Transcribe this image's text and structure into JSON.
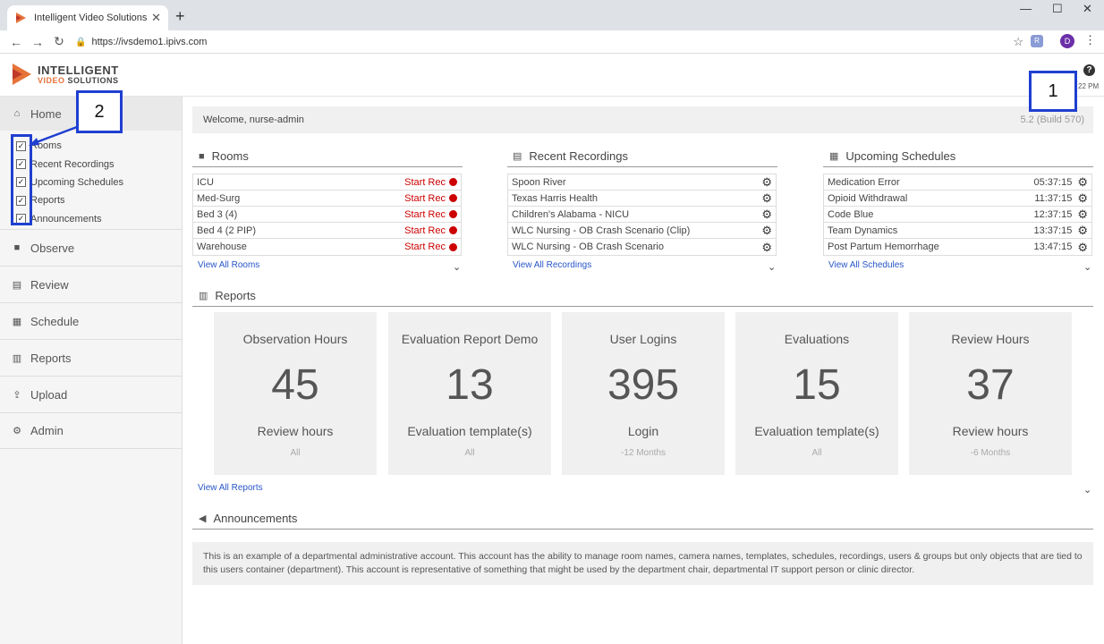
{
  "browser": {
    "tab_title": "Intelligent Video Solutions",
    "url": "https://ivsdemo1.ipivs.com",
    "profile_initial": "D"
  },
  "header": {
    "logo_line1": "INTELLIGENT",
    "logo_video": "VIDEO",
    "logo_solutions": "SOLUTIONS",
    "time": "22 PM"
  },
  "sidebar": {
    "home_label": "Home",
    "checklist": [
      "Rooms",
      "Recent Recordings",
      "Upcoming Schedules",
      "Reports",
      "Announcements"
    ],
    "items": [
      {
        "label": "Observe",
        "icon": "video-camera-icon"
      },
      {
        "label": "Review",
        "icon": "film-icon"
      },
      {
        "label": "Schedule",
        "icon": "calendar-icon"
      },
      {
        "label": "Reports",
        "icon": "bar-chart-icon"
      },
      {
        "label": "Upload",
        "icon": "upload-icon"
      },
      {
        "label": "Admin",
        "icon": "gear-icon"
      }
    ]
  },
  "callouts": {
    "one": "1",
    "two": "2"
  },
  "welcome": {
    "text": "Welcome, nurse-admin",
    "version": "5.2 (Build 570)"
  },
  "rooms": {
    "title": "Rooms",
    "start_label": "Start Rec",
    "items": [
      "ICU",
      "Med-Surg",
      "Bed 3 (4)",
      "Bed 4 (2 PIP)",
      "Warehouse"
    ],
    "view_all": "View All Rooms"
  },
  "recordings": {
    "title": "Recent Recordings",
    "items": [
      "Spoon River",
      "Texas Harris Health",
      "Children's Alabama - NICU",
      "WLC Nursing - OB Crash Scenario (Clip)",
      "WLC Nursing - OB Crash Scenario"
    ],
    "view_all": "View All Recordings"
  },
  "schedules": {
    "title": "Upcoming Schedules",
    "items": [
      {
        "name": "Medication Error",
        "time": "05:37:15"
      },
      {
        "name": "Opioid Withdrawal",
        "time": "11:37:15"
      },
      {
        "name": "Code Blue",
        "time": "12:37:15"
      },
      {
        "name": "Team Dynamics",
        "time": "13:37:15"
      },
      {
        "name": "Post Partum Hemorrhage",
        "time": "13:47:15"
      }
    ],
    "view_all": "View All Schedules"
  },
  "reports": {
    "title": "Reports",
    "cards": [
      {
        "title": "Observation Hours",
        "value": "45",
        "subtitle": "Review hours",
        "footer": "All"
      },
      {
        "title": "Evaluation Report Demo",
        "value": "13",
        "subtitle": "Evaluation template(s)",
        "footer": "All"
      },
      {
        "title": "User Logins",
        "value": "395",
        "subtitle": "Login",
        "footer": "-12 Months"
      },
      {
        "title": "Evaluations",
        "value": "15",
        "subtitle": "Evaluation template(s)",
        "footer": "All"
      },
      {
        "title": "Review Hours",
        "value": "37",
        "subtitle": "Review hours",
        "footer": "-6 Months"
      }
    ],
    "view_all": "View All Reports"
  },
  "announcements": {
    "title": "Announcements",
    "text": "This is an example of a departmental administrative account. This account has the ability to manage room names, camera names, templates, schedules, recordings, users & groups but only objects that are tied to this users container (department). This account is representative of something that might be used by the department chair, departmental IT support person or clinic director."
  },
  "colors": {
    "accent": "#2855c8",
    "record": "#cc0000",
    "callout": "#1f3fd0",
    "brand_orange": "#e5733a"
  }
}
